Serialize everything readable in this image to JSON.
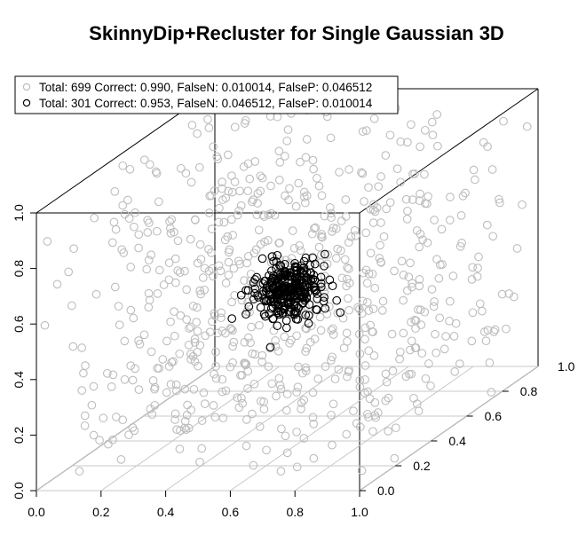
{
  "chart_data": {
    "type": "scatter",
    "title": "SkinnyDip+Recluster for Single Gaussian 3D",
    "axes": {
      "x": {
        "ticks": [
          "0.0",
          "0.2",
          "0.4",
          "0.6",
          "0.8",
          "1.0"
        ],
        "lim": [
          0,
          1
        ]
      },
      "y": {
        "ticks": [
          "0.0",
          "0.2",
          "0.4",
          "0.6",
          "0.8"
        ],
        "extra_label": "1.0",
        "lim": [
          0,
          1
        ]
      },
      "z": {
        "ticks": [
          "0.0",
          "0.2",
          "0.4",
          "0.6",
          "0.8",
          "1.0"
        ],
        "lim": [
          0,
          1
        ]
      }
    },
    "grid": "floor grid lines along depth (y) axis",
    "legend_placement": "top-left",
    "series": [
      {
        "legend": "Total: 699 Correct: 0.990, FalseN: 0.010014, FalseP: 0.046512",
        "count": 699,
        "distribution": "uniform noise over unit cube",
        "color": "#bdbdbd"
      },
      {
        "legend": "Total: 301 Correct: 0.953, FalseN: 0.046512, FalseP: 0.010014",
        "count": 301,
        "distribution": "gaussian cluster",
        "center": [
          0.5,
          0.5,
          0.5
        ],
        "color": "#000000"
      }
    ]
  }
}
